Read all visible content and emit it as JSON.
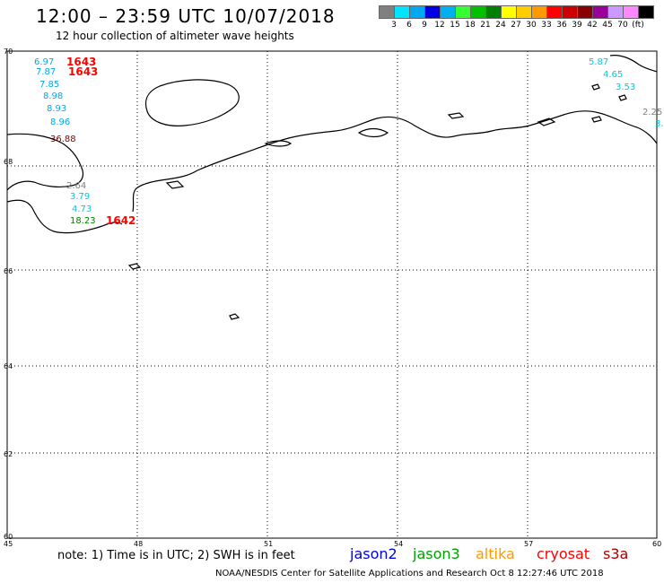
{
  "header": {
    "title": "12:00 – 23:59 UTC 10/07/2018",
    "subtitle": "12 hour collection of altimeter wave heights"
  },
  "color_scale": {
    "colors": [
      "#808080",
      "#00e5ff",
      "#00a8f0",
      "#0000e0",
      "#00b0f0",
      "#33ff33",
      "#00c000",
      "#008000",
      "#ffff00",
      "#ffcc00",
      "#ff9900",
      "#ff0000",
      "#cc0000",
      "#880000",
      "#990099",
      "#cc99ff",
      "#ff88ff",
      "#000000"
    ],
    "labels": [
      "3",
      "6",
      "9",
      "12",
      "15",
      "18",
      "21",
      "24",
      "27",
      "30",
      "33",
      "36",
      "39",
      "42",
      "45",
      "70",
      "(ft)"
    ]
  },
  "map": {
    "lat_ticks": [
      "70",
      "68",
      "66",
      "64",
      "62",
      "60"
    ],
    "lon_ticks": [
      "45",
      "48",
      "51",
      "54",
      "57",
      "60"
    ],
    "readings": [
      {
        "text": "6.97",
        "color": "#00a8f0"
      },
      {
        "text": "7.87",
        "color": "#00a8f0"
      },
      {
        "text": "7.85",
        "color": "#00a8f0"
      },
      {
        "text": "8.98",
        "color": "#00a8f0"
      },
      {
        "text": "8.93",
        "color": "#00a8f0"
      },
      {
        "text": "8.96",
        "color": "#00a8f0"
      },
      {
        "text": "36.88",
        "color": "#880000"
      },
      {
        "text": "2.64",
        "color": "#808080"
      },
      {
        "text": "3.79",
        "color": "#00c8e0"
      },
      {
        "text": "4.73",
        "color": "#00c8e0"
      },
      {
        "text": "18.23",
        "color": "#008000"
      },
      {
        "text": "5.87",
        "color": "#00c8e0"
      },
      {
        "text": "4.65",
        "color": "#00c8e0"
      },
      {
        "text": "3.53",
        "color": "#00c8e0"
      },
      {
        "text": "2.25",
        "color": "#808080"
      },
      {
        "text": "3.",
        "color": "#00c8e0"
      }
    ],
    "time_labels": [
      {
        "text": "1643",
        "color": "#ff0000"
      },
      {
        "text": "1643",
        "color": "#ff0000"
      },
      {
        "text": "1642",
        "color": "#ff0000"
      }
    ]
  },
  "footer": {
    "note": "note: 1) Time is in UTC; 2) SWH is in feet",
    "satellites": [
      {
        "name": "jason2",
        "color": "#0000e0"
      },
      {
        "name": "jason3",
        "color": "#00a000"
      },
      {
        "name": "altika",
        "color": "#ff9900"
      },
      {
        "name": "cryosat",
        "color": "#ff0000"
      },
      {
        "name": "s3a",
        "color": "#aa0000"
      }
    ],
    "credit": "NOAA/NESDIS Center for Satellite Applications and Research    Oct  8 12:27:46 UTC 2018"
  }
}
